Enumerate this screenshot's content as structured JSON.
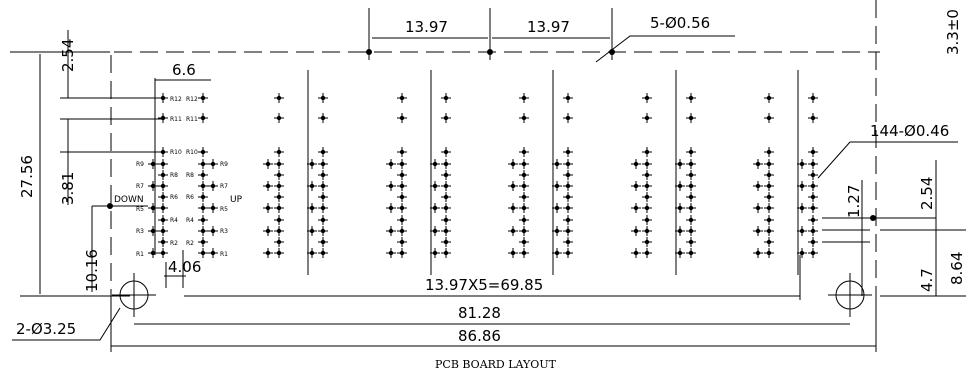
{
  "title": "PCB BOARD LAYOUT",
  "dimensions": {
    "pitch_top_1": "13.97",
    "pitch_top_2": "13.97",
    "mount_holes_top": "5-Ø0.56",
    "right_edge_top": "3.3±0",
    "width_6_6": "6.6",
    "left_2_54": "2.54",
    "left_27_56": "27.56",
    "left_3_81": "3.81",
    "left_10_16": "10.16",
    "pins_spec": "144-Ø0.46",
    "right_1_27": "1.27",
    "right_2_54": "2.54",
    "right_4_7": "4.7",
    "right_8_64": "8.64",
    "bottom_4_06": "4.06",
    "bottom_total_pitch": "13.97X5=69.85",
    "bottom_81_28": "81.28",
    "bottom_86_86": "86.86",
    "holes_spec": "2-Ø3.25"
  },
  "labels": {
    "down": "DOWN",
    "up": "UP",
    "left_rows": [
      "R12",
      "R11",
      "R10",
      "R9",
      "R8",
      "R7",
      "R6",
      "R5",
      "R4",
      "R3",
      "R2",
      "R1"
    ],
    "right_rows": [
      "R12",
      "R11",
      "R10",
      "R9",
      "R8",
      "R7",
      "R6",
      "R5",
      "R4",
      "R3",
      "R2",
      "R1"
    ]
  }
}
